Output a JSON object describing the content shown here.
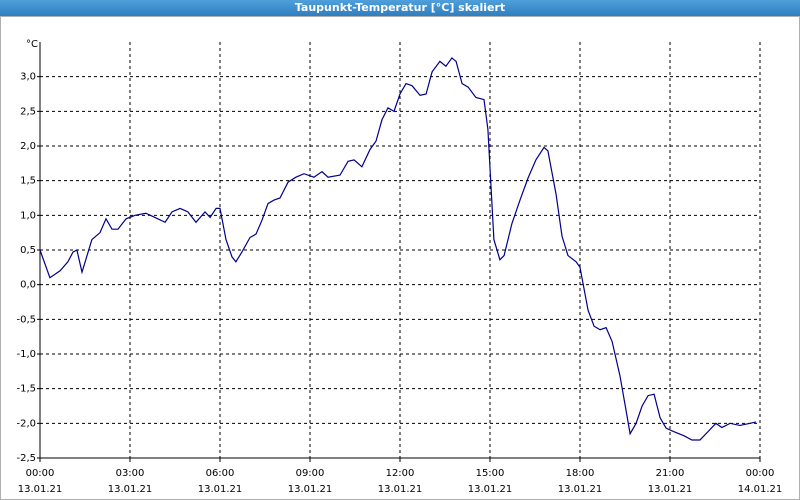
{
  "chart_data": {
    "type": "line",
    "title": "Taupunkt-Temperatur [°C] skaliert",
    "y_unit": "°C",
    "x": [
      0.0,
      0.33,
      0.67,
      0.93,
      1.1,
      1.23,
      1.4,
      1.73,
      2.0,
      2.2,
      2.4,
      2.6,
      2.87,
      3.17,
      3.53,
      3.83,
      4.17,
      4.4,
      4.67,
      4.93,
      5.2,
      5.5,
      5.67,
      5.87,
      6.0,
      6.2,
      6.4,
      6.53,
      6.73,
      7.0,
      7.2,
      7.4,
      7.6,
      7.8,
      8.0,
      8.27,
      8.53,
      8.8,
      9.13,
      9.4,
      9.6,
      10.0,
      10.27,
      10.47,
      10.73,
      11.0,
      11.2,
      11.4,
      11.6,
      11.8,
      12.0,
      12.2,
      12.4,
      12.67,
      12.87,
      13.07,
      13.33,
      13.53,
      13.73,
      13.87,
      14.07,
      14.27,
      14.53,
      14.8,
      14.93,
      15.13,
      15.33,
      15.47,
      15.73,
      16.0,
      16.27,
      16.53,
      16.8,
      16.93,
      17.2,
      17.4,
      17.6,
      17.87,
      18.0,
      18.27,
      18.47,
      18.67,
      18.87,
      19.07,
      19.33,
      19.53,
      19.67,
      19.87,
      20.07,
      20.27,
      20.47,
      20.67,
      20.87,
      21.13,
      21.47,
      21.73,
      22.0,
      22.2,
      22.53,
      22.73,
      23.0,
      23.33,
      23.67,
      23.87
    ],
    "series": [
      {
        "color": "#00008b",
        "values": [
          0.5,
          0.1,
          0.2,
          0.33,
          0.47,
          0.5,
          0.18,
          0.65,
          0.75,
          0.95,
          0.8,
          0.8,
          0.95,
          1.0,
          1.03,
          0.97,
          0.9,
          1.05,
          1.1,
          1.05,
          0.9,
          1.05,
          0.97,
          1.1,
          1.1,
          0.65,
          0.4,
          0.33,
          0.47,
          0.68,
          0.73,
          0.93,
          1.17,
          1.22,
          1.25,
          1.48,
          1.55,
          1.6,
          1.55,
          1.63,
          1.55,
          1.58,
          1.78,
          1.8,
          1.7,
          1.95,
          2.07,
          2.38,
          2.55,
          2.5,
          2.75,
          2.9,
          2.87,
          2.73,
          2.75,
          3.07,
          3.22,
          3.15,
          3.27,
          3.22,
          2.9,
          2.85,
          2.7,
          2.67,
          2.24,
          0.65,
          0.36,
          0.42,
          0.88,
          1.22,
          1.54,
          1.8,
          1.98,
          1.93,
          1.31,
          0.7,
          0.42,
          0.33,
          0.25,
          -0.37,
          -0.6,
          -0.65,
          -0.62,
          -0.82,
          -1.31,
          -1.8,
          -2.15,
          -2.0,
          -1.75,
          -1.6,
          -1.58,
          -1.92,
          -2.07,
          -2.12,
          -2.18,
          -2.24,
          -2.24,
          -2.15,
          -2.0,
          -2.06,
          -2.0,
          -2.03,
          -2.0,
          -1.98
        ]
      }
    ],
    "xlim": [
      0,
      24
    ],
    "xticks": [
      {
        "value": 0,
        "label": "00:00"
      },
      {
        "value": 3,
        "label": "03:00"
      },
      {
        "value": 6,
        "label": "06:00"
      },
      {
        "value": 9,
        "label": "09:00"
      },
      {
        "value": 12,
        "label": "12:00"
      },
      {
        "value": 15,
        "label": "15:00"
      },
      {
        "value": 18,
        "label": "18:00"
      },
      {
        "value": 21,
        "label": "21:00"
      },
      {
        "value": 24,
        "label": "00:00"
      }
    ],
    "xtick_dates": [
      "13.01.21",
      "13.01.21",
      "13.01.21",
      "13.01.21",
      "13.01.21",
      "13.01.21",
      "13.01.21",
      "13.01.21",
      "14.01.21"
    ],
    "ylim": [
      -2.5,
      3.5
    ],
    "yticks": [
      {
        "value": -2.5,
        "label": "-2,5"
      },
      {
        "value": -2,
        "label": "-2,0"
      },
      {
        "value": -1.5,
        "label": "-1,5"
      },
      {
        "value": -1,
        "label": "-1,0"
      },
      {
        "value": -0.5,
        "label": "-0,5"
      },
      {
        "value": 0,
        "label": "0,0"
      },
      {
        "value": 0.5,
        "label": "0,5"
      },
      {
        "value": 1,
        "label": "1,0"
      },
      {
        "value": 1.5,
        "label": "1,5"
      },
      {
        "value": 2,
        "label": "2,0"
      },
      {
        "value": 2.5,
        "label": "2,5"
      },
      {
        "value": 3,
        "label": "3,0"
      }
    ],
    "grid": true
  }
}
